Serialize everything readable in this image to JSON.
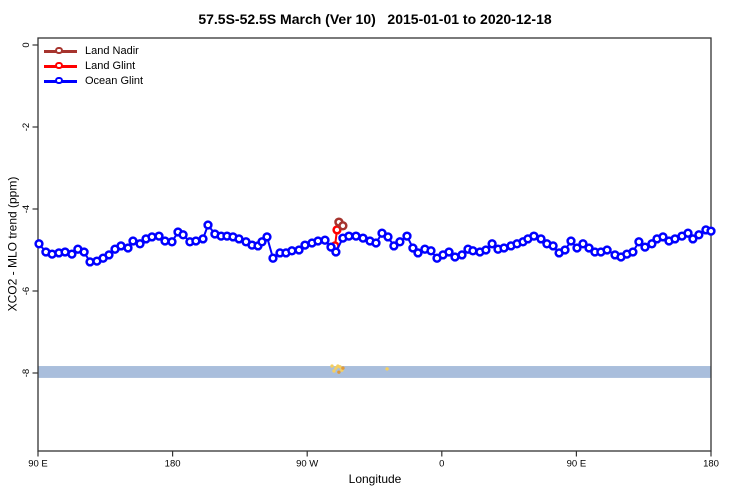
{
  "title": "57.5S-52.5S March (Ver 10)   2015-01-01 to 2020-12-18",
  "chart_data": {
    "type": "line",
    "title": "57.5S-52.5S March (Ver 10)   2015-01-01 to 2020-12-18",
    "xlabel": "Longitude",
    "ylabel": "XCO2 - MLO trend (ppm)",
    "x_axis": {
      "note": "longitude axis wraps eastward starting at 90E; positions are degrees along axis",
      "range_deg": [
        0,
        450
      ],
      "tick_positions_deg": [
        0,
        90,
        180,
        270,
        360,
        450
      ],
      "tick_labels": [
        "90 E",
        "180",
        "90 W",
        "0",
        "90 E",
        "180"
      ]
    },
    "y_axis": {
      "range": [
        0.2,
        -10.0
      ],
      "tick_values": [
        0,
        -2,
        -4,
        -6,
        -8
      ],
      "tick_labels": [
        "0",
        "-2",
        "-4",
        "-6",
        "-8"
      ]
    },
    "grid": "off",
    "legend": {
      "position": "top-left",
      "items": [
        {
          "label": "Land Nadir",
          "color": "#a6342e"
        },
        {
          "label": "Land Glint",
          "color": "#ff0000"
        },
        {
          "label": "Ocean Glint",
          "color": "#0000ff"
        }
      ]
    },
    "band": {
      "y_top": -7.83,
      "y_bottom": -8.12,
      "color": "#a9bedc"
    },
    "dust": {
      "colors": [
        "#f6cf5f",
        "#e09a3a"
      ],
      "points": [
        [
          196.6,
          -7.83,
          0
        ],
        [
          197.9,
          -7.95,
          0
        ],
        [
          199.2,
          -7.88,
          0
        ],
        [
          200.5,
          -7.83,
          0
        ],
        [
          201.2,
          -7.98,
          1
        ],
        [
          201.9,
          -7.85,
          0
        ],
        [
          203.2,
          -7.93,
          0
        ],
        [
          203.9,
          -7.88,
          1
        ],
        [
          233.4,
          -7.9,
          0
        ]
      ]
    },
    "series": [
      {
        "name": "Land Glint",
        "color": "#ff0000",
        "points": [
          [
            198.6,
            -4.9
          ],
          [
            199.9,
            -4.51
          ]
        ]
      },
      {
        "name": "Land Nadir",
        "color": "#a6342e",
        "points": [
          [
            201.2,
            -4.32
          ],
          [
            203.9,
            -4.41
          ]
        ]
      },
      {
        "name": "Ocean Glint",
        "color": "#0000ff",
        "points": [
          [
            0.7,
            -4.85
          ],
          [
            5.3,
            -5.05
          ],
          [
            9.4,
            -5.1
          ],
          [
            14.0,
            -5.07
          ],
          [
            18.1,
            -5.05
          ],
          [
            22.7,
            -5.1
          ],
          [
            26.7,
            -4.98
          ],
          [
            30.8,
            -5.05
          ],
          [
            34.8,
            -5.29
          ],
          [
            39.4,
            -5.27
          ],
          [
            43.5,
            -5.2
          ],
          [
            47.5,
            -5.12
          ],
          [
            51.5,
            -4.98
          ],
          [
            55.5,
            -4.9
          ],
          [
            60.2,
            -4.95
          ],
          [
            63.5,
            -4.78
          ],
          [
            68.2,
            -4.85
          ],
          [
            72.2,
            -4.73
          ],
          [
            76.2,
            -4.68
          ],
          [
            80.9,
            -4.66
          ],
          [
            84.9,
            -4.78
          ],
          [
            89.6,
            -4.8
          ],
          [
            93.6,
            -4.56
          ],
          [
            97.0,
            -4.63
          ],
          [
            101.6,
            -4.8
          ],
          [
            105.6,
            -4.78
          ],
          [
            110.3,
            -4.73
          ],
          [
            113.7,
            -4.39
          ],
          [
            118.3,
            -4.61
          ],
          [
            122.4,
            -4.66
          ],
          [
            126.4,
            -4.66
          ],
          [
            130.4,
            -4.68
          ],
          [
            134.4,
            -4.73
          ],
          [
            139.1,
            -4.8
          ],
          [
            143.1,
            -4.88
          ],
          [
            147.1,
            -4.9
          ],
          [
            149.8,
            -4.8
          ],
          [
            153.1,
            -4.68
          ],
          [
            157.1,
            -5.2
          ],
          [
            161.8,
            -5.07
          ],
          [
            165.8,
            -5.07
          ],
          [
            169.8,
            -5.02
          ],
          [
            174.5,
            -5.0
          ],
          [
            178.5,
            -4.88
          ],
          [
            183.2,
            -4.83
          ],
          [
            187.2,
            -4.78
          ],
          [
            191.9,
            -4.76
          ],
          [
            195.9,
            -4.93
          ],
          [
            199.2,
            -5.05
          ],
          [
            203.9,
            -4.71
          ],
          [
            207.9,
            -4.66
          ],
          [
            212.6,
            -4.66
          ],
          [
            217.3,
            -4.71
          ],
          [
            222.0,
            -4.78
          ],
          [
            226.0,
            -4.83
          ],
          [
            230.0,
            -4.59
          ],
          [
            234.0,
            -4.68
          ],
          [
            238.0,
            -4.9
          ],
          [
            242.0,
            -4.8
          ],
          [
            246.7,
            -4.66
          ],
          [
            250.7,
            -4.95
          ],
          [
            254.1,
            -5.07
          ],
          [
            258.7,
            -4.98
          ],
          [
            262.8,
            -5.02
          ],
          [
            266.8,
            -5.2
          ],
          [
            270.8,
            -5.12
          ],
          [
            274.8,
            -5.05
          ],
          [
            278.8,
            -5.17
          ],
          [
            283.5,
            -5.12
          ],
          [
            287.5,
            -4.98
          ],
          [
            290.8,
            -5.02
          ],
          [
            295.5,
            -5.05
          ],
          [
            299.5,
            -5.0
          ],
          [
            303.6,
            -4.85
          ],
          [
            307.6,
            -4.98
          ],
          [
            311.6,
            -4.95
          ],
          [
            316.3,
            -4.9
          ],
          [
            320.3,
            -4.85
          ],
          [
            324.3,
            -4.8
          ],
          [
            327.6,
            -4.73
          ],
          [
            331.6,
            -4.66
          ],
          [
            336.3,
            -4.73
          ],
          [
            340.3,
            -4.85
          ],
          [
            344.4,
            -4.9
          ],
          [
            348.4,
            -5.07
          ],
          [
            352.4,
            -5.0
          ],
          [
            356.4,
            -4.78
          ],
          [
            360.4,
            -4.95
          ],
          [
            364.4,
            -4.85
          ],
          [
            368.4,
            -4.95
          ],
          [
            372.4,
            -5.05
          ],
          [
            376.4,
            -5.05
          ],
          [
            380.5,
            -5.0
          ],
          [
            385.8,
            -5.12
          ],
          [
            389.8,
            -5.17
          ],
          [
            393.8,
            -5.1
          ],
          [
            397.8,
            -5.05
          ],
          [
            401.8,
            -4.8
          ],
          [
            405.9,
            -4.93
          ],
          [
            410.5,
            -4.85
          ],
          [
            413.9,
            -4.73
          ],
          [
            417.9,
            -4.68
          ],
          [
            421.9,
            -4.78
          ],
          [
            425.9,
            -4.73
          ],
          [
            430.6,
            -4.66
          ],
          [
            434.6,
            -4.59
          ],
          [
            437.9,
            -4.73
          ],
          [
            441.9,
            -4.63
          ],
          [
            446.6,
            -4.51
          ],
          [
            450.0,
            -4.54
          ]
        ]
      }
    ]
  }
}
